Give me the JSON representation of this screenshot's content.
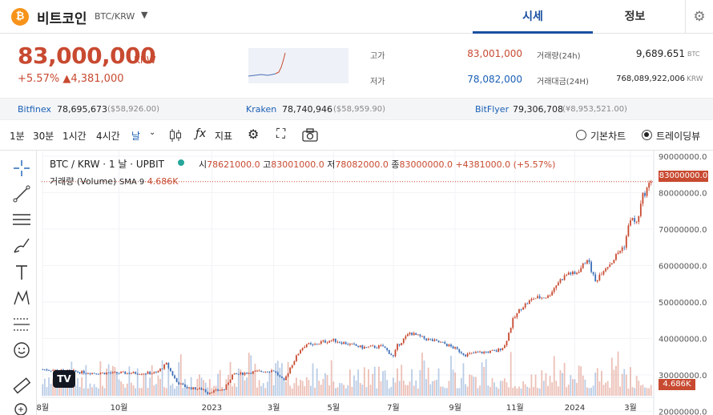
{
  "header": {
    "coin_icon_glyph": "₿",
    "coin_name": "비트코인",
    "coin_pair": "BTC/KRW",
    "tabs": [
      "시세",
      "정보"
    ]
  },
  "price": {
    "current": "83,000,000",
    "unit": "KRW",
    "change": "+5.57% ▲4,381,000"
  },
  "stats": {
    "high_label": "고가",
    "high_value": "83,001,000",
    "low_label": "저가",
    "low_value": "78,082,000",
    "volume_label": "거래량(24h)",
    "volume_value": "9,689.651",
    "volume_unit": "BTC",
    "amount_label": "거래대금(24H)",
    "amount_value": "768,089,922,006",
    "amount_unit": "KRW"
  },
  "exchanges": [
    {
      "name": "Bitfinex",
      "price": "78,695,673",
      "foreign": "($58,926.00)"
    },
    {
      "name": "Kraken",
      "price": "78,740,946",
      "foreign": "($58,959.90)"
    },
    {
      "name": "BitFlyer",
      "price": "79,306,708",
      "foreign": "(¥8,953,521.00)"
    }
  ],
  "toolbar": {
    "intervals": [
      "1분",
      "30분",
      "1시간",
      "4시간",
      "날"
    ],
    "indicator_label": "지표",
    "basic_chart": "기본차트",
    "tradingview": "트레이딩뷰"
  },
  "legend": {
    "title": "BTC / KRW · 1 날 · UPBIT",
    "open_label": "시",
    "open": "78621000.0",
    "high_label": "고",
    "high": "83001000.0",
    "low_label": "저",
    "low": "78082000.0",
    "close_label": "종",
    "close": "83000000.0",
    "change": "+4381000.0 (+5.57%)",
    "volume_title": "거래량 (Volume)",
    "sma": "SMA 9",
    "volume_value": "4.686K"
  },
  "tags": {
    "last_price": "83000000.0",
    "last_volume": "4.686K",
    "tv_logo": "TV"
  },
  "colors": {
    "up": "#c84a31",
    "down": "#3d6fb8",
    "accent": "#1a4fa0"
  },
  "chart_data": {
    "type": "candlestick",
    "title": "BTC / KRW · 1 날 · UPBIT",
    "y_ticks": [
      "90000000.0",
      "80000000.0",
      "70000000.0",
      "60000000.0",
      "50000000.0",
      "40000000.0",
      "30000000.0",
      "20000000.0"
    ],
    "y_values": [
      90000000,
      80000000,
      70000000,
      60000000,
      50000000,
      40000000,
      30000000,
      20000000
    ],
    "ylim": [
      19000000,
      91500000
    ],
    "x_ticks": [
      "8월",
      "10월",
      "2023",
      "3월",
      "5월",
      "7월",
      "9월",
      "11월",
      "2024",
      "3월"
    ],
    "x_tick_index": [
      0,
      37,
      82,
      112,
      141,
      170,
      200,
      229,
      258,
      285
    ],
    "n_candles": 296,
    "price_path_index": [
      0,
      25,
      55,
      60,
      65,
      70,
      78,
      80,
      82,
      88,
      92,
      102,
      112,
      117,
      120,
      125,
      128,
      131,
      135,
      141,
      148,
      155,
      165,
      170,
      172,
      178,
      185,
      195,
      200,
      205,
      210,
      220,
      224,
      228,
      232,
      238,
      245,
      250,
      255,
      258,
      262,
      264,
      268,
      270,
      272,
      276,
      279,
      282,
      285,
      288,
      291,
      295
    ],
    "price_path_values": [
      31500000,
      30500000,
      30500000,
      33000000,
      28000000,
      26500000,
      26000000,
      25000000,
      25500000,
      26000000,
      30000000,
      30800000,
      31200000,
      28200000,
      32000000,
      37000000,
      38500000,
      38000000,
      39000000,
      39500000,
      38500000,
      37500000,
      37800000,
      35000000,
      38000000,
      41500000,
      40000000,
      38500000,
      37200000,
      35500000,
      36000000,
      36500000,
      38000000,
      45000000,
      48500000,
      51000000,
      51500000,
      55500000,
      58000000,
      57500000,
      60000000,
      62000000,
      55500000,
      57500000,
      59000000,
      61000000,
      63500000,
      65500000,
      73000000,
      71500000,
      79000000,
      83000000
    ],
    "volume_ylim": [
      0,
      21000
    ],
    "volume_last": 4686
  }
}
